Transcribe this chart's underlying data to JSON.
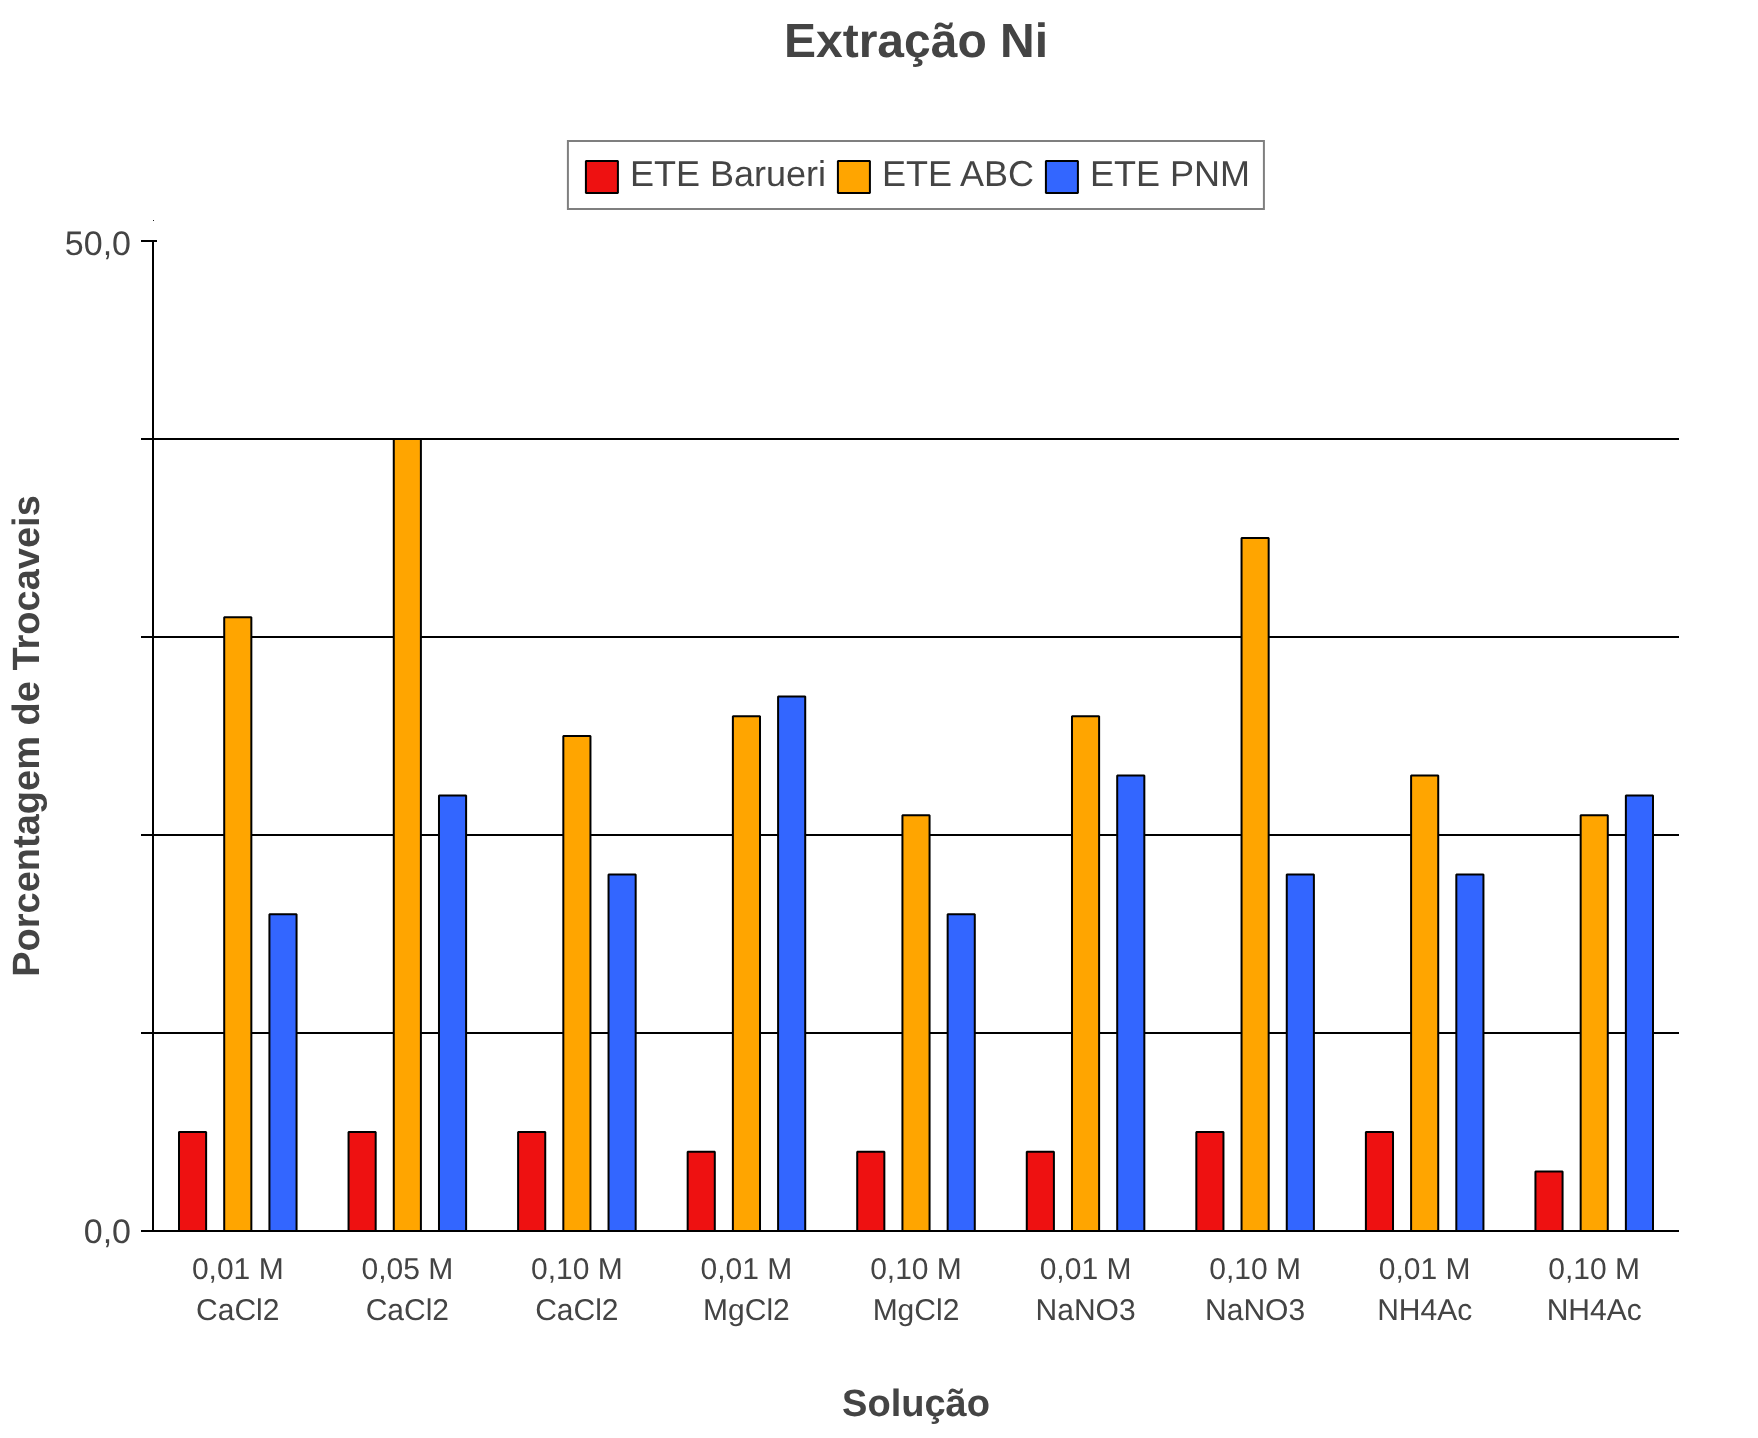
{
  "chart_data": {
    "type": "bar",
    "title": "Extração Ni",
    "xlabel": "Solução",
    "ylabel": "Porcentagem de Trocaveis",
    "categories": [
      "0,01 M\nCaCl2",
      "0,05 M\nCaCl2",
      "0,10 M\nCaCl2",
      "0,01 M\nMgCl2",
      "0,10 M\nMgCl2",
      "0,01 M\nNaNO3",
      "0,10 M\nNaNO3",
      "0,01 M\nNH4Ac",
      "0,10 M\nNH4Ac"
    ],
    "series": [
      {
        "name": "ETE Barueri",
        "color": "#ee1111",
        "values": [
          5,
          5,
          5,
          4,
          4,
          4,
          5,
          5,
          3
        ]
      },
      {
        "name": "ETE ABC",
        "color": "#ffa500",
        "values": [
          31,
          40,
          25,
          26,
          21,
          26,
          35,
          23,
          21
        ]
      },
      {
        "name": "ETE PNM",
        "color": "#3366ff",
        "values": [
          16,
          22,
          18,
          27,
          16,
          23,
          18,
          18,
          22
        ]
      }
    ],
    "ylim": [
      0,
      50
    ],
    "yticks": [
      {
        "value": 0,
        "label": "0,0"
      },
      {
        "value": 10,
        "label": null
      },
      {
        "value": 20,
        "label": null
      },
      {
        "value": 30,
        "label": null
      },
      {
        "value": 40,
        "label": null
      },
      {
        "value": 50,
        "label": "50,0"
      }
    ],
    "grid": "y",
    "legend": "top"
  }
}
